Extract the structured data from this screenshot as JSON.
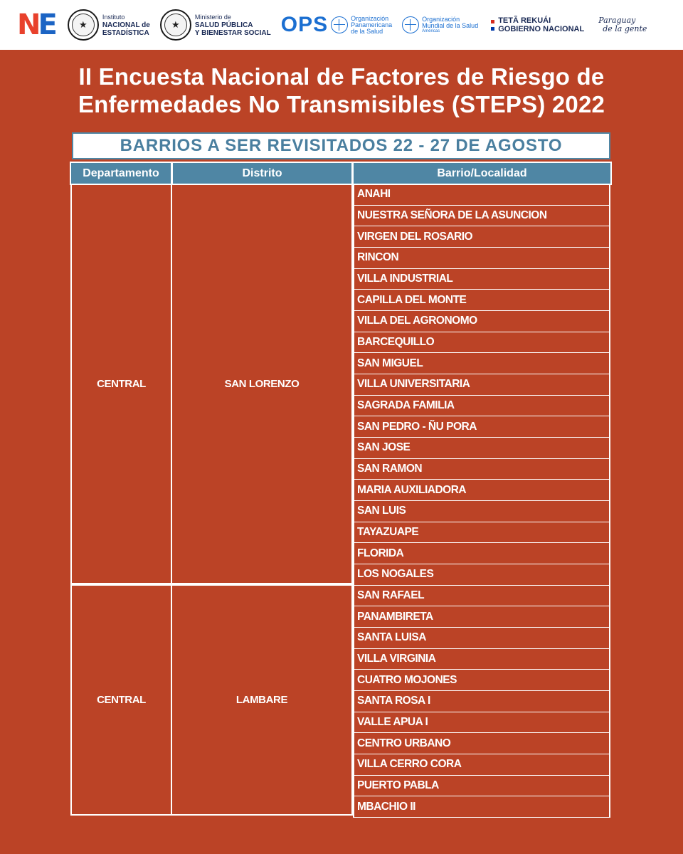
{
  "logos": {
    "ine": {
      "mark_n": "N",
      "mark_e": "E",
      "line1": "Instituto",
      "line2": "NACIONAL de",
      "line3": "ESTADÍSTICA"
    },
    "msp": {
      "line1": "Ministerio de",
      "line2": "SALUD PÚBLICA",
      "line3": "Y BIENESTAR SOCIAL"
    },
    "ops": {
      "word": "OPS",
      "line1": "Organización",
      "line2": "Panamericana",
      "line3": "de la Salud"
    },
    "oms": {
      "line1": "Organización",
      "line2": "Mundial de la Salud",
      "line3": "Américas"
    },
    "gov": {
      "line1": "TETÃ REKUÁI",
      "line2": "GOBIERNO NACIONAL"
    },
    "slogan": {
      "line1": "Paraguay",
      "line2": "de la gente"
    }
  },
  "title": {
    "line1": "II Encuesta Nacional de Factores de Riesgo de",
    "line2": "Enfermedades No Transmisibles (STEPS) 2022"
  },
  "subtitle": "BARRIOS A SER REVISITADOS 22 - 27 DE AGOSTO",
  "table": {
    "headers": [
      "Departamento",
      "Distrito",
      "Barrio/Localidad"
    ],
    "groups": [
      {
        "departamento": "CENTRAL",
        "distrito": "SAN LORENZO",
        "barrios": [
          "ANAHI",
          "NUESTRA SEÑORA DE LA ASUNCION",
          "VIRGEN DEL ROSARIO",
          "RINCON",
          "VILLA INDUSTRIAL",
          "CAPILLA DEL MONTE",
          "VILLA DEL AGRONOMO",
          "BARCEQUILLO",
          "SAN MIGUEL",
          "VILLA UNIVERSITARIA",
          "SAGRADA FAMILIA",
          "SAN PEDRO - ÑU PORA",
          "SAN JOSE",
          "SAN RAMON",
          "MARIA AUXILIADORA",
          "SAN LUIS",
          "TAYAZUAPE",
          "FLORIDA",
          "LOS NOGALES"
        ]
      },
      {
        "departamento": "CENTRAL",
        "distrito": "LAMBARE",
        "barrios": [
          "SAN RAFAEL",
          "PANAMBIRETA",
          "SANTA LUISA",
          "VILLA VIRGINIA",
          "CUATRO MOJONES",
          "SANTA ROSA I",
          "VALLE APUA I",
          "CENTRO URBANO",
          "VILLA CERRO CORA",
          "PUERTO PABLA",
          "MBACHIO II"
        ]
      }
    ]
  },
  "colors": {
    "background": "#bb4326",
    "header": "#4f86a4",
    "text": "#ffffff"
  }
}
